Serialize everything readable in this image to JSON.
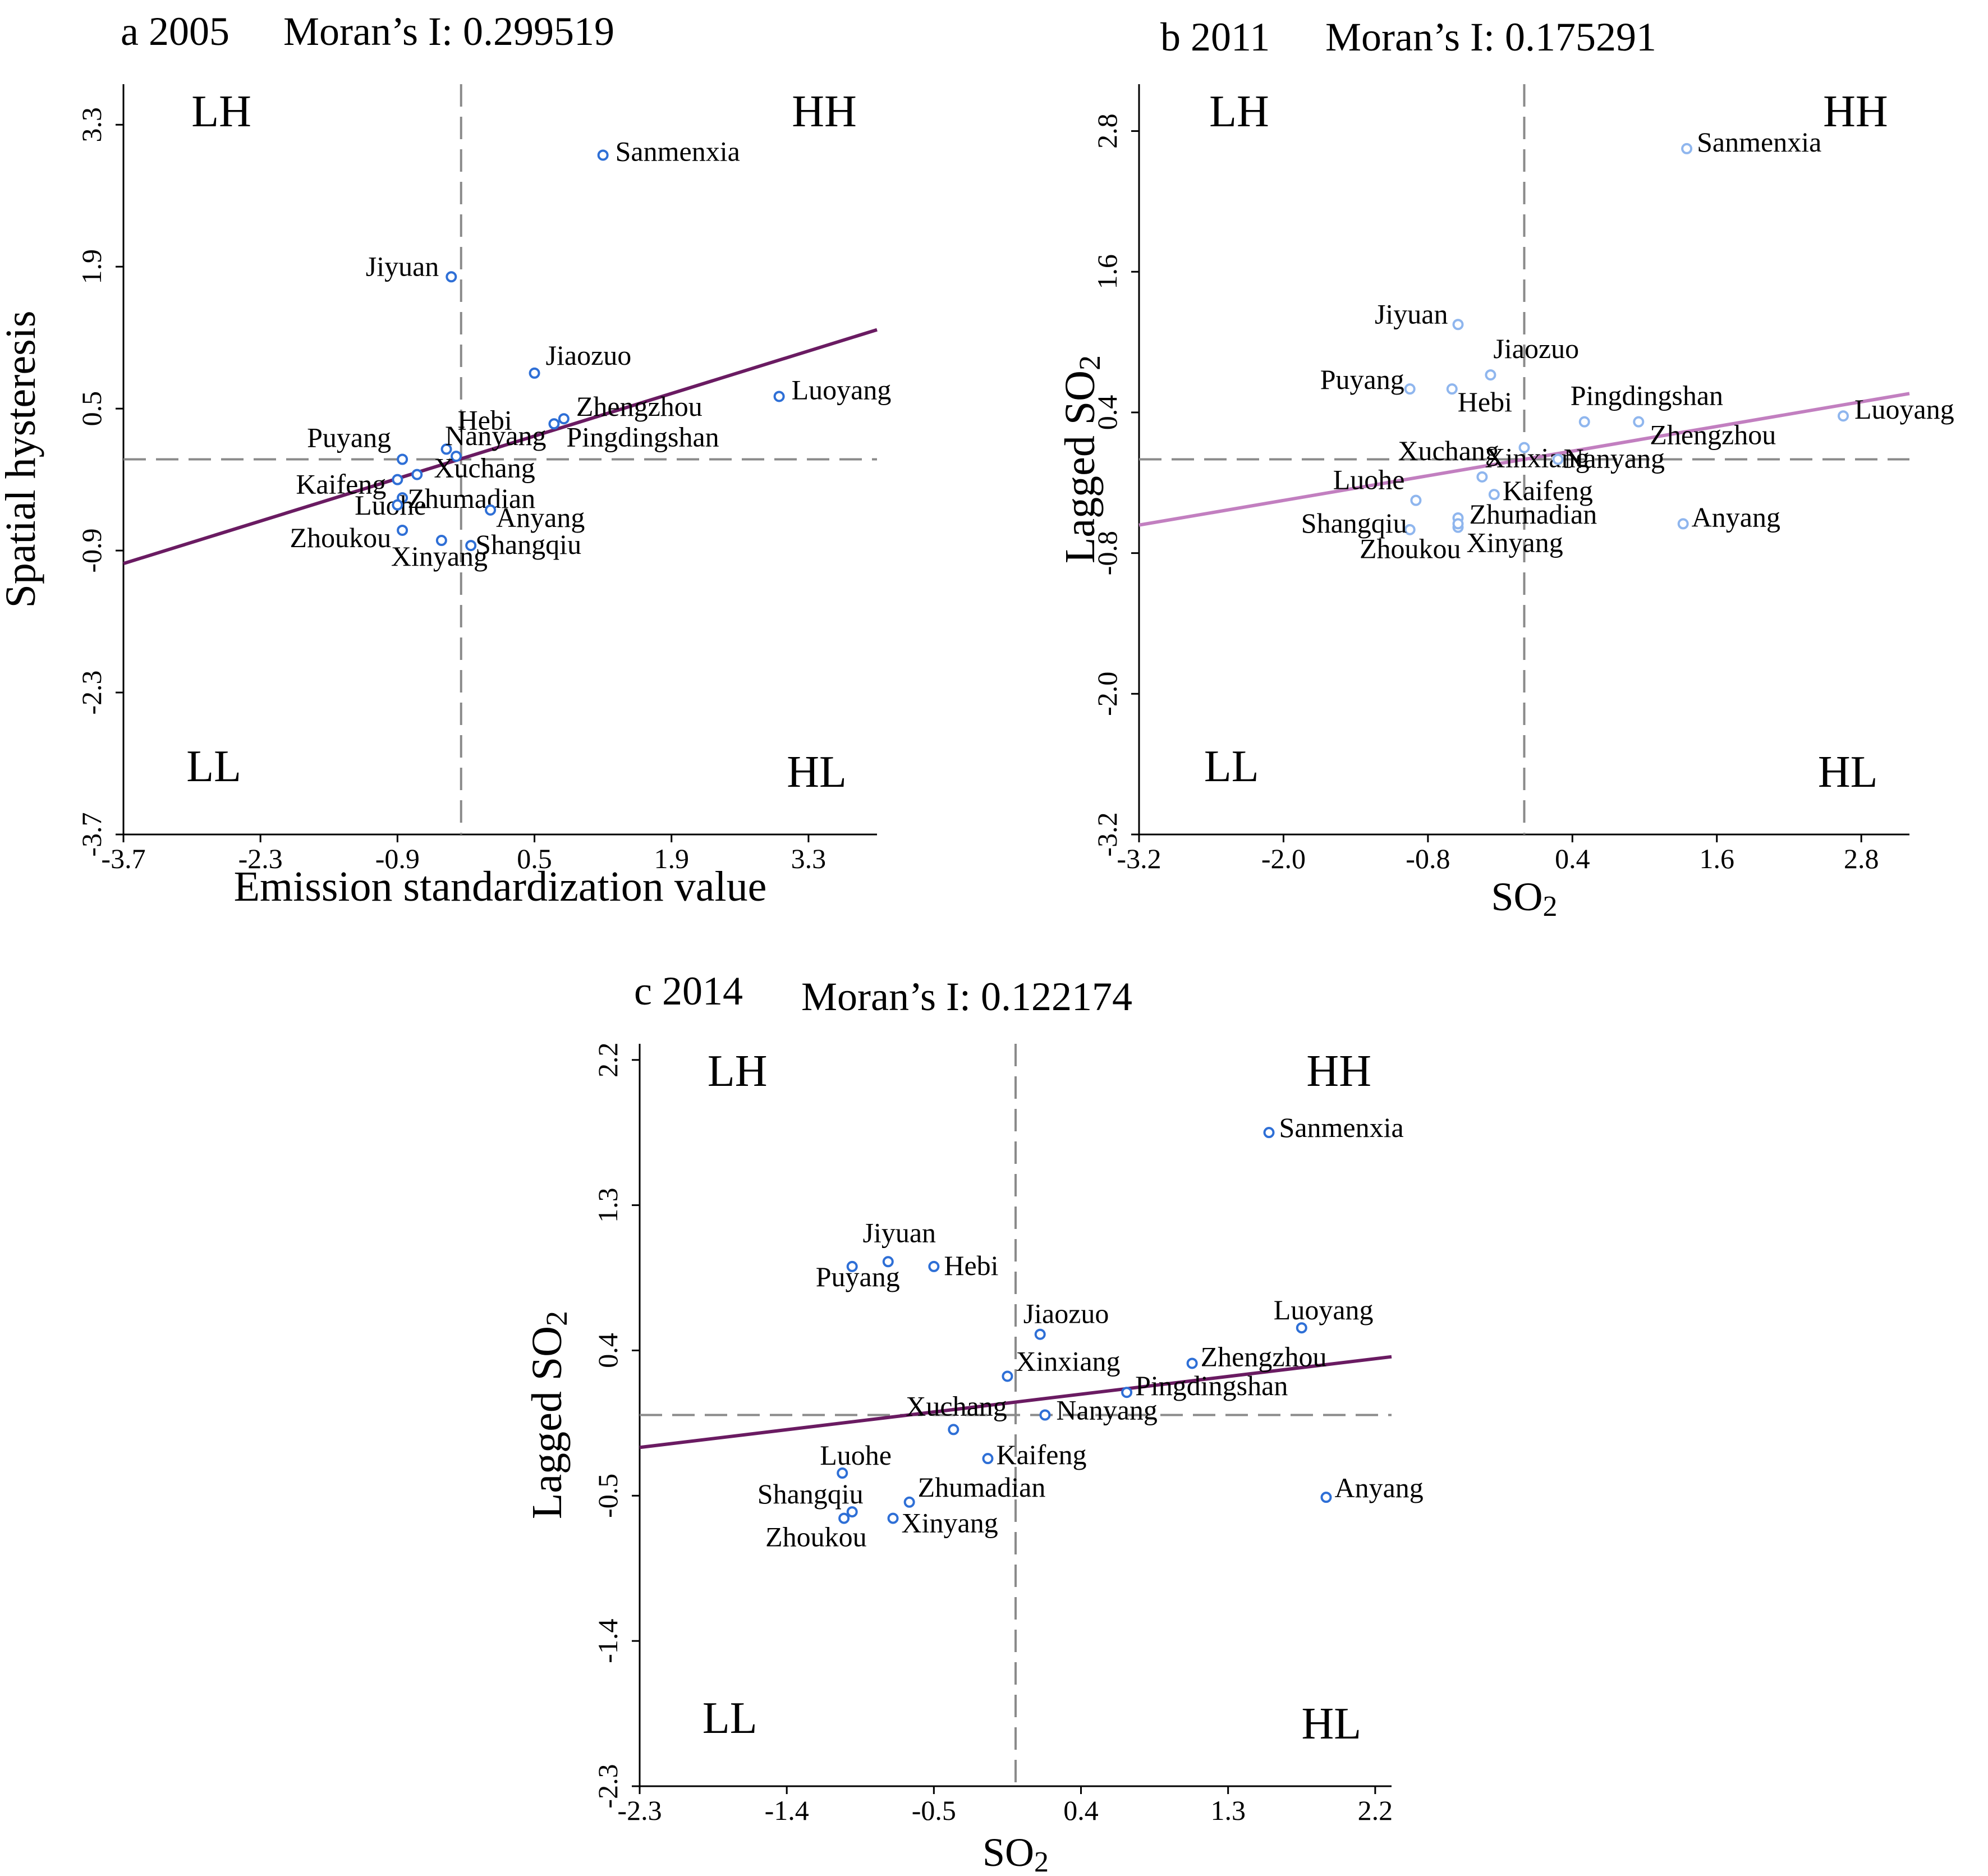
{
  "chart_data": [
    {
      "type": "scatter",
      "panel_label": "a 2005",
      "title": "Moran’s I: 0.299519",
      "xlabel": "Emission standardization value",
      "ylabel": "Spatial hysteresis",
      "ylabel_sub": "",
      "xlabel_sub": "",
      "xlim": [
        -3.7,
        4.0
      ],
      "ylim": [
        -3.7,
        3.7
      ],
      "xticks": [
        "-3.7",
        "-2.3",
        "-0.9",
        "0.5",
        "1.9",
        "3.3"
      ],
      "yticks": [
        "-3.7",
        "-2.3",
        "-0.9",
        "0.5",
        "1.9",
        "3.3"
      ],
      "xtick_values": [
        -3.7,
        -2.3,
        -0.9,
        0.5,
        1.9,
        3.3
      ],
      "ytick_values": [
        -3.7,
        -2.3,
        -0.9,
        0.5,
        1.9,
        3.3
      ],
      "mean_x": -0.25,
      "mean_y": 0.0,
      "regression": {
        "slope": 0.299519,
        "intercept": 0.08
      },
      "quadrants": {
        "LH": "LH",
        "HH": "HH",
        "LL": "LL",
        "HL": "HL"
      },
      "point_color": "#2e6fd6",
      "line_color": "#6a1b62",
      "points": [
        {
          "name": "Sanmenxia",
          "x": 1.2,
          "y": 3.0
        },
        {
          "name": "Jiyuan",
          "x": -0.35,
          "y": 1.8
        },
        {
          "name": "Jiaozuo",
          "x": 0.5,
          "y": 0.85
        },
        {
          "name": "Luoyang",
          "x": 3.0,
          "y": 0.62
        },
        {
          "name": "Zhengzhou",
          "x": 0.8,
          "y": 0.4
        },
        {
          "name": "Pingdingshan",
          "x": 0.7,
          "y": 0.35
        },
        {
          "name": "Hebi",
          "x": -0.4,
          "y": 0.1
        },
        {
          "name": "Puyang",
          "x": -0.85,
          "y": 0.0
        },
        {
          "name": "Nanyang",
          "x": -0.3,
          "y": 0.03
        },
        {
          "name": "Xuchang",
          "x": -0.7,
          "y": -0.15
        },
        {
          "name": "Kaifeng",
          "x": -0.9,
          "y": -0.2
        },
        {
          "name": "Luohe",
          "x": -0.85,
          "y": -0.38
        },
        {
          "name": "Zhumadian",
          "x": -0.9,
          "y": -0.45
        },
        {
          "name": "Anyang",
          "x": 0.05,
          "y": -0.5
        },
        {
          "name": "Zhoukou",
          "x": -0.85,
          "y": -0.7
        },
        {
          "name": "Xinyang",
          "x": -0.45,
          "y": -0.8
        },
        {
          "name": "Shangqiu",
          "x": -0.15,
          "y": -0.85
        }
      ]
    },
    {
      "type": "scatter",
      "panel_label": "b 2011",
      "title": "Moran’s I: 0.175291",
      "xlabel": "SO",
      "xlabel_sub": "2",
      "ylabel": "Lagged SO",
      "ylabel_sub": "2",
      "xlim": [
        -3.2,
        3.2
      ],
      "ylim": [
        -3.2,
        3.2
      ],
      "xticks": [
        "-3.2",
        "-2.0",
        "-0.8",
        "0.4",
        "1.6",
        "2.8"
      ],
      "yticks": [
        "-3.2",
        "-2.0",
        "-0.8",
        "0.4",
        "1.6",
        "2.8"
      ],
      "xtick_values": [
        -3.2,
        -2.0,
        -0.8,
        0.4,
        1.6,
        2.8
      ],
      "ytick_values": [
        -3.2,
        -2.0,
        -0.8,
        0.4,
        1.6,
        2.8
      ],
      "mean_x": 0.0,
      "mean_y": 0.0,
      "regression": {
        "slope": 0.175291,
        "intercept": 0.0
      },
      "quadrants": {
        "LH": "LH",
        "HH": "HH",
        "LL": "LL",
        "HL": "HL"
      },
      "point_color": "#8fb6ee",
      "line_color": "#c27fc0",
      "points": [
        {
          "name": "Sanmenxia",
          "x": 1.35,
          "y": 2.65
        },
        {
          "name": "Jiyuan",
          "x": -0.55,
          "y": 1.15
        },
        {
          "name": "Jiaozuo",
          "x": -0.28,
          "y": 0.72
        },
        {
          "name": "Puyang",
          "x": -0.95,
          "y": 0.6
        },
        {
          "name": "Hebi",
          "x": -0.6,
          "y": 0.6
        },
        {
          "name": "Pingdingshan",
          "x": 0.5,
          "y": 0.32
        },
        {
          "name": "Luoyang",
          "x": 2.65,
          "y": 0.37
        },
        {
          "name": "Zhengzhou",
          "x": 0.95,
          "y": 0.32
        },
        {
          "name": "Xinxiang",
          "x": 0.0,
          "y": 0.1
        },
        {
          "name": "Xuchang",
          "x": -0.35,
          "y": -0.15
        },
        {
          "name": "Nanyang",
          "x": 0.28,
          "y": 0.0
        },
        {
          "name": "Luohe",
          "x": -0.9,
          "y": -0.35
        },
        {
          "name": "Kaifeng",
          "x": -0.25,
          "y": -0.3
        },
        {
          "name": "Shangqiu",
          "x": -0.95,
          "y": -0.6
        },
        {
          "name": "Zhumadian",
          "x": -0.55,
          "y": -0.5
        },
        {
          "name": "Anyang",
          "x": 1.32,
          "y": -0.55
        },
        {
          "name": "Zhoukou",
          "x": -0.55,
          "y": -0.58
        },
        {
          "name": "Xinyang",
          "x": -0.55,
          "y": -0.55
        }
      ]
    },
    {
      "type": "scatter",
      "panel_label": "c 2014",
      "title": "Moran’s I: 0.122174",
      "xlabel": "SO",
      "xlabel_sub": "2",
      "ylabel": "Lagged SO",
      "ylabel_sub": "2",
      "xlim": [
        -2.3,
        2.3
      ],
      "ylim": [
        -2.3,
        2.3
      ],
      "xticks": [
        "-2.3",
        "-1.4",
        "-0.5",
        "0.4",
        "1.3",
        "2.2"
      ],
      "yticks": [
        "-2.3",
        "-1.4",
        "-0.5",
        "0.4",
        "1.3",
        "2.2"
      ],
      "xtick_values": [
        -2.3,
        -1.4,
        -0.5,
        0.4,
        1.3,
        2.2
      ],
      "ytick_values": [
        -2.3,
        -1.4,
        -0.5,
        0.4,
        1.3,
        2.2
      ],
      "mean_x": 0.0,
      "mean_y": 0.0,
      "regression": {
        "slope": 0.122174,
        "intercept": 0.08
      },
      "quadrants": {
        "LH": "LH",
        "HH": "HH",
        "LL": "LL",
        "HL": "HL"
      },
      "point_color": "#2e6fd6",
      "line_color": "#6a1b62",
      "points": [
        {
          "name": "Sanmenxia",
          "x": 1.55,
          "y": 1.75
        },
        {
          "name": "Jiyuan",
          "x": -0.78,
          "y": 0.95
        },
        {
          "name": "Puyang",
          "x": -1.0,
          "y": 0.92
        },
        {
          "name": "Hebi",
          "x": -0.5,
          "y": 0.92
        },
        {
          "name": "Jiaozuo",
          "x": 0.15,
          "y": 0.5
        },
        {
          "name": "Luoyang",
          "x": 1.75,
          "y": 0.54
        },
        {
          "name": "Xinxiang",
          "x": -0.05,
          "y": 0.24
        },
        {
          "name": "Zhengzhou",
          "x": 1.08,
          "y": 0.32
        },
        {
          "name": "Pingdingshan",
          "x": 0.68,
          "y": 0.14
        },
        {
          "name": "Xuchang",
          "x": -0.38,
          "y": -0.09
        },
        {
          "name": "Nanyang",
          "x": 0.18,
          "y": 0.0
        },
        {
          "name": "Luohe",
          "x": -1.06,
          "y": -0.36
        },
        {
          "name": "Kaifeng",
          "x": -0.17,
          "y": -0.27
        },
        {
          "name": "Anyang",
          "x": 1.9,
          "y": -0.51
        },
        {
          "name": "Zhumadian",
          "x": -0.65,
          "y": -0.54
        },
        {
          "name": "Shangqiu",
          "x": -1.0,
          "y": -0.6
        },
        {
          "name": "Zhoukou",
          "x": -1.05,
          "y": -0.64
        },
        {
          "name": "Xinyang",
          "x": -0.75,
          "y": -0.64
        }
      ]
    }
  ]
}
